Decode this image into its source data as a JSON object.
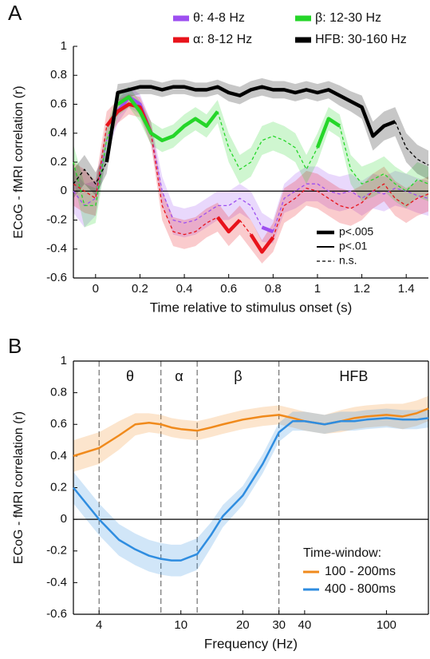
{
  "chart_data": [
    {
      "type": "line",
      "panel_label": "A",
      "y_label": "ECoG - fMRI  correlation (r)",
      "x_label": "Time relative to stimulus onset (s)",
      "x": [
        -0.1,
        -0.05,
        0,
        0.05,
        0.1,
        0.15,
        0.2,
        0.25,
        0.3,
        0.35,
        0.4,
        0.45,
        0.5,
        0.55,
        0.6,
        0.65,
        0.7,
        0.75,
        0.8,
        0.85,
        0.9,
        0.95,
        1.0,
        1.05,
        1.1,
        1.15,
        1.2,
        1.25,
        1.3,
        1.35,
        1.4,
        1.45,
        1.5
      ],
      "series": [
        {
          "name": "θ: 4-8 Hz",
          "color": "#9d4ff0",
          "values": [
            0.0,
            -0.1,
            -0.05,
            0.35,
            0.55,
            0.65,
            0.6,
            0.4,
            0.0,
            -0.2,
            -0.22,
            -0.2,
            -0.15,
            -0.1,
            -0.1,
            -0.05,
            -0.1,
            -0.25,
            -0.28,
            -0.05,
            0.0,
            0.05,
            0.05,
            0.0,
            -0.02,
            0.0,
            -0.05,
            0.0,
            -0.02,
            0.02,
            0.0,
            -0.03,
            -0.05
          ],
          "error": [
            0.15,
            0.15,
            0.12,
            0.1,
            0.08,
            0.07,
            0.07,
            0.08,
            0.1,
            0.1,
            0.1,
            0.1,
            0.1,
            0.1,
            0.1,
            0.1,
            0.1,
            0.1,
            0.08,
            0.1,
            0.12,
            0.12,
            0.12,
            0.12,
            0.12,
            0.12,
            0.12,
            0.12,
            0.12,
            0.12,
            0.12,
            0.12,
            0.12
          ],
          "style": [
            "dashed",
            "dashed",
            "dashed",
            "dashed",
            "dashed",
            "thick",
            "thick",
            "thick",
            "dashed",
            "dashed",
            "dashed",
            "dashed",
            "dashed",
            "dashed",
            "dashed",
            "dashed",
            "dashed",
            "dashed",
            "thick",
            "dashed",
            "dashed",
            "dashed",
            "dashed",
            "dashed",
            "dashed",
            "dashed",
            "dashed",
            "dashed",
            "dashed",
            "dashed",
            "dashed",
            "dashed",
            "dashed"
          ]
        },
        {
          "name": "α: 8-12 Hz",
          "color": "#e8131b",
          "values": [
            0.05,
            0.0,
            -0.05,
            0.45,
            0.55,
            0.6,
            0.58,
            0.4,
            -0.1,
            -0.28,
            -0.3,
            -0.28,
            -0.22,
            -0.18,
            -0.28,
            -0.2,
            -0.3,
            -0.42,
            -0.32,
            -0.1,
            -0.05,
            0.02,
            0.0,
            -0.05,
            -0.1,
            -0.12,
            -0.08,
            0.0,
            0.05,
            -0.05,
            -0.1,
            -0.05,
            -0.02
          ],
          "error": [
            0.15,
            0.15,
            0.12,
            0.1,
            0.08,
            0.07,
            0.07,
            0.08,
            0.1,
            0.1,
            0.1,
            0.1,
            0.1,
            0.1,
            0.1,
            0.1,
            0.1,
            0.08,
            0.1,
            0.12,
            0.12,
            0.12,
            0.12,
            0.12,
            0.12,
            0.12,
            0.12,
            0.12,
            0.12,
            0.12,
            0.12,
            0.12,
            0.12
          ],
          "style": [
            "dashed",
            "dashed",
            "dashed",
            "dashed",
            "thick",
            "thick",
            "thick",
            "thick",
            "dashed",
            "dashed",
            "dashed",
            "dashed",
            "dashed",
            "dashed",
            "thick",
            "thick",
            "dashed",
            "thick",
            "thick",
            "dashed",
            "dashed",
            "dashed",
            "dashed",
            "dashed",
            "dashed",
            "dashed",
            "dashed",
            "dashed",
            "dashed",
            "dashed",
            "dashed",
            "dashed",
            "dashed"
          ]
        },
        {
          "name": "β: 12-30 Hz",
          "color": "#25d629",
          "values": [
            0.2,
            -0.1,
            -0.1,
            0.35,
            0.6,
            0.65,
            0.55,
            0.4,
            0.35,
            0.38,
            0.45,
            0.5,
            0.45,
            0.55,
            0.3,
            0.15,
            0.2,
            0.35,
            0.38,
            0.35,
            0.3,
            0.15,
            0.3,
            0.5,
            0.45,
            0.15,
            0.05,
            0.08,
            0.12,
            0.05,
            0.0,
            0.08,
            0.05
          ],
          "error": [
            0.12,
            0.15,
            0.12,
            0.1,
            0.08,
            0.07,
            0.07,
            0.08,
            0.08,
            0.08,
            0.08,
            0.08,
            0.08,
            0.08,
            0.1,
            0.1,
            0.1,
            0.1,
            0.1,
            0.1,
            0.1,
            0.1,
            0.1,
            0.08,
            0.08,
            0.1,
            0.12,
            0.12,
            0.12,
            0.12,
            0.12,
            0.12,
            0.12
          ],
          "style": [
            "dashed",
            "dashed",
            "dashed",
            "dashed",
            "dashed",
            "thick",
            "thick",
            "thick",
            "thick",
            "thick",
            "thick",
            "thick",
            "thick",
            "thick",
            "dashed",
            "dashed",
            "dashed",
            "dashed",
            "dashed",
            "dashed",
            "dashed",
            "dashed",
            "dashed",
            "thick",
            "thick",
            "dashed",
            "dashed",
            "dashed",
            "dashed",
            "dashed",
            "dashed",
            "dashed",
            "dashed"
          ]
        },
        {
          "name": "HFB: 30-160 Hz",
          "color": "#000000",
          "values": [
            0.05,
            0.15,
            0.05,
            0.2,
            0.68,
            0.7,
            0.72,
            0.72,
            0.7,
            0.72,
            0.72,
            0.7,
            0.7,
            0.72,
            0.68,
            0.66,
            0.7,
            0.72,
            0.7,
            0.7,
            0.68,
            0.7,
            0.68,
            0.7,
            0.66,
            0.62,
            0.58,
            0.38,
            0.45,
            0.48,
            0.3,
            0.22,
            0.18
          ],
          "error": [
            0.1,
            0.1,
            0.08,
            0.08,
            0.06,
            0.05,
            0.05,
            0.05,
            0.05,
            0.05,
            0.05,
            0.05,
            0.05,
            0.05,
            0.06,
            0.06,
            0.06,
            0.06,
            0.06,
            0.06,
            0.06,
            0.06,
            0.06,
            0.06,
            0.07,
            0.07,
            0.08,
            0.1,
            0.1,
            0.1,
            0.1,
            0.1,
            0.1
          ],
          "style": [
            "dashed",
            "dashed",
            "dashed",
            "dashed",
            "thick",
            "thick",
            "thick",
            "thick",
            "thick",
            "thick",
            "thick",
            "thick",
            "thick",
            "thick",
            "thick",
            "thick",
            "thick",
            "thick",
            "thick",
            "thick",
            "thick",
            "thick",
            "thick",
            "thick",
            "thick",
            "thick",
            "thick",
            "thick",
            "thick",
            "thick",
            "dashed",
            "dashed",
            "dashed"
          ]
        }
      ],
      "line_styles": [
        {
          "label": "p<.005",
          "style": "thick"
        },
        {
          "label": "p<.01",
          "style": "thin"
        },
        {
          "label": "n.s.",
          "style": "dashed"
        }
      ],
      "xlim": [
        -0.1,
        1.5
      ],
      "xticks": [
        0,
        0.2,
        0.4,
        0.6,
        0.8,
        1,
        1.2,
        1.4
      ],
      "ylim": [
        -0.6,
        1
      ],
      "yticks": [
        1,
        0.8,
        0.6,
        0.4,
        0.2,
        0,
        -0.2,
        -0.4,
        -0.6
      ],
      "zero_line": true,
      "legend": "top"
    },
    {
      "type": "line",
      "panel_label": "B",
      "y_label": "ECoG - fMRI  correlation (r)",
      "x_label": "Frequency (Hz)",
      "x": [
        3,
        4,
        5,
        6,
        7,
        8,
        9,
        10,
        12,
        14,
        16,
        20,
        25,
        30,
        35,
        40,
        50,
        60,
        70,
        80,
        100,
        120,
        140,
        160
      ],
      "series": [
        {
          "name": "100 - 200ms",
          "color": "#f08a1c",
          "values": [
            0.4,
            0.45,
            0.53,
            0.6,
            0.61,
            0.6,
            0.58,
            0.57,
            0.56,
            0.58,
            0.6,
            0.63,
            0.65,
            0.66,
            0.64,
            0.62,
            0.6,
            0.62,
            0.64,
            0.65,
            0.66,
            0.65,
            0.67,
            0.7
          ],
          "error": [
            0.1,
            0.1,
            0.09,
            0.07,
            0.06,
            0.06,
            0.06,
            0.06,
            0.06,
            0.06,
            0.06,
            0.06,
            0.06,
            0.06,
            0.06,
            0.06,
            0.06,
            0.07,
            0.07,
            0.07,
            0.07,
            0.08,
            0.08,
            0.08
          ]
        },
        {
          "name": "400 - 800ms",
          "color": "#2f8de0",
          "values": [
            0.2,
            0.0,
            -0.13,
            -0.19,
            -0.23,
            -0.25,
            -0.26,
            -0.26,
            -0.22,
            -0.1,
            0.02,
            0.15,
            0.35,
            0.55,
            0.62,
            0.62,
            0.6,
            0.62,
            0.62,
            0.63,
            0.64,
            0.63,
            0.63,
            0.64
          ],
          "error": [
            0.1,
            0.1,
            0.1,
            0.1,
            0.1,
            0.1,
            0.1,
            0.1,
            0.1,
            0.08,
            0.07,
            0.06,
            0.06,
            0.06,
            0.06,
            0.06,
            0.06,
            0.06,
            0.06,
            0.06,
            0.06,
            0.06,
            0.06,
            0.06
          ]
        }
      ],
      "band_lines": [
        4,
        8,
        12,
        30
      ],
      "band_labels": [
        "θ",
        "α",
        "β",
        "HFB"
      ],
      "legend_title": "Time-window:",
      "xlim": [
        3,
        160
      ],
      "xticks": [
        4,
        10,
        20,
        30,
        40,
        100
      ],
      "xlog": true,
      "ylim": [
        -0.6,
        1
      ],
      "yticks": [
        1,
        0.8,
        0.6,
        0.4,
        0.2,
        0,
        -0.2,
        -0.4,
        -0.6
      ],
      "zero_line": true,
      "frame": true,
      "legend": "lower right"
    }
  ]
}
